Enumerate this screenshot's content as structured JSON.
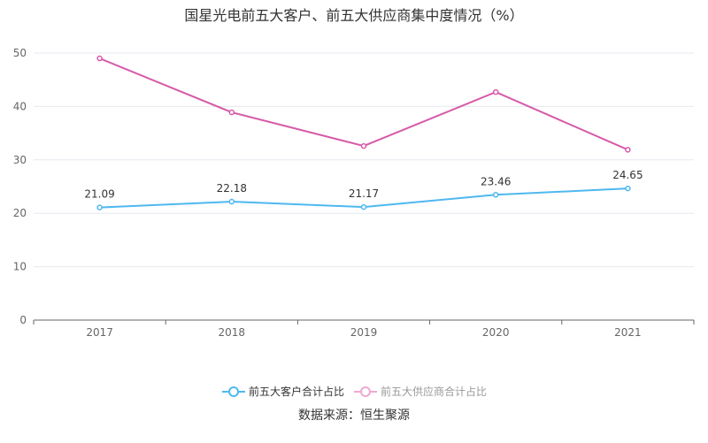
{
  "chart_data": {
    "type": "line",
    "title": "国星光电前五大客户、前五大供应商集中度情况（%）",
    "categories": [
      "2017",
      "2018",
      "2019",
      "2020",
      "2021"
    ],
    "ylim": [
      0,
      50
    ],
    "yticks": [
      0,
      10,
      20,
      30,
      40,
      50
    ],
    "grid": true,
    "legend_position": "bottom",
    "series": [
      {
        "name": "前五大客户合计占比",
        "values": [
          21.09,
          22.18,
          21.17,
          23.46,
          24.65
        ],
        "color": "#4fb8f0",
        "labels": [
          "21.09",
          "22.18",
          "21.17",
          "23.46",
          "24.65"
        ],
        "legend_active": true
      },
      {
        "name": "前五大供应商合计占比",
        "values": [
          49.0,
          38.9,
          32.6,
          42.7,
          31.9
        ],
        "color": "#d65aa8",
        "labels": null,
        "legend_active": false
      }
    ]
  },
  "source": "数据来源：恒生聚源"
}
